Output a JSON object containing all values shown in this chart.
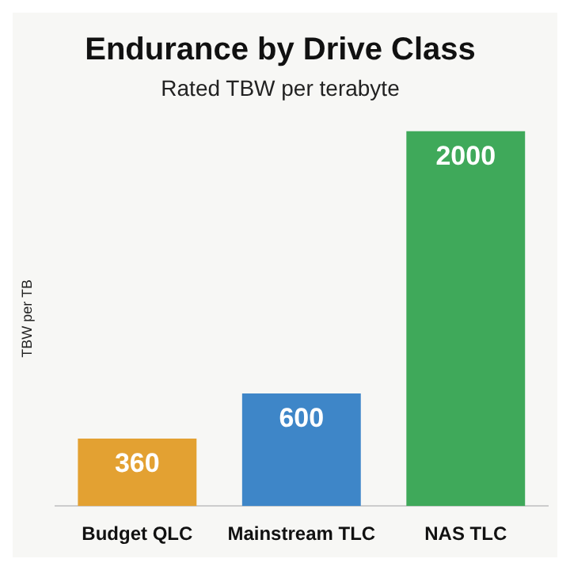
{
  "chart_data": {
    "type": "bar",
    "title": "Endurance by Drive Class",
    "subtitle": "Rated TBW per terabyte",
    "ylabel": "TBW per TB",
    "categories": [
      "Budget QLC",
      "Mainstream TLC",
      "NAS TLC"
    ],
    "values": [
      360,
      600,
      2000
    ],
    "colors": [
      "#e3a132",
      "#3e86c8",
      "#3fa95a"
    ],
    "data_labels": true,
    "tick_labels": "x"
  }
}
